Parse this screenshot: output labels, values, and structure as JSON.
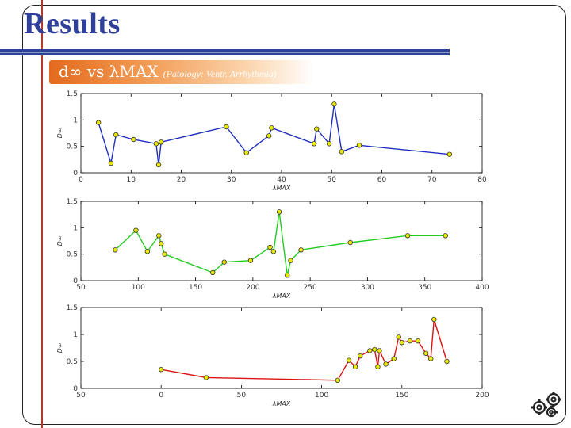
{
  "slide": {
    "title": "Results",
    "subtitle_main": "d∞ vs λMAX",
    "subtitle_tag": "(Patology: Ventr. Arrhythmia)"
  },
  "colors": {
    "title": "#2e3f9c",
    "accent_bar": "#e46a1c",
    "rule_red": "#b33a2a",
    "marker_fill": "#e8e800"
  },
  "chart_data": [
    {
      "type": "line",
      "xlabel": "λMAX",
      "ylabel": "D∞",
      "xlim": [
        0,
        80
      ],
      "ylim": [
        0,
        1.5
      ],
      "xticks": [
        "0",
        "10",
        "20",
        "30",
        "40",
        "50",
        "60",
        "70",
        "80"
      ],
      "yticks": [
        "0",
        "0.5",
        "1",
        "1.5"
      ],
      "color": "#1f2fbf",
      "x": [
        3.5,
        6,
        7,
        10.5,
        15,
        15.5,
        16,
        29,
        33,
        37.5,
        38,
        46.5,
        47,
        49.5,
        50.5,
        52,
        55.5,
        73.5
      ],
      "y": [
        0.95,
        0.18,
        0.72,
        0.63,
        0.55,
        0.15,
        0.58,
        0.87,
        0.38,
        0.7,
        0.85,
        0.55,
        0.83,
        0.55,
        1.3,
        0.4,
        0.52,
        0.35
      ]
    },
    {
      "type": "line",
      "xlabel": "λMAX",
      "ylabel": "D∞",
      "xlim": [
        50,
        400
      ],
      "ylim": [
        0,
        1.5
      ],
      "xticks": [
        "50",
        "100",
        "150",
        "200",
        "250",
        "300",
        "350",
        "400"
      ],
      "yticks": [
        "0",
        "0.5",
        "1",
        "1.5"
      ],
      "color": "#22cc22",
      "x": [
        80,
        98,
        108,
        118,
        120,
        123,
        165,
        175,
        198,
        215,
        218,
        223,
        230,
        233,
        242,
        285,
        335,
        368
      ],
      "y": [
        0.58,
        0.95,
        0.55,
        0.85,
        0.7,
        0.5,
        0.15,
        0.35,
        0.38,
        0.63,
        0.55,
        1.3,
        0.1,
        0.38,
        0.58,
        0.72,
        0.85,
        0.85
      ]
    },
    {
      "type": "line",
      "xlabel": "λMAX",
      "ylabel": "D∞",
      "xlim": [
        -50,
        200
      ],
      "ylim": [
        0,
        1.5
      ],
      "xticks": [
        "50",
        "0",
        "50",
        "100",
        "150",
        "200"
      ],
      "yticks": [
        "0",
        "0.5",
        "1",
        "1.5"
      ],
      "color": "#dd1111",
      "x": [
        0,
        28,
        110,
        117,
        121,
        124,
        130,
        133,
        135,
        136,
        140,
        145,
        148,
        150,
        155,
        160,
        165,
        168,
        170,
        178
      ],
      "y": [
        0.35,
        0.2,
        0.15,
        0.52,
        0.4,
        0.6,
        0.7,
        0.72,
        0.4,
        0.7,
        0.45,
        0.55,
        0.95,
        0.85,
        0.88,
        0.88,
        0.65,
        0.55,
        1.28,
        0.5
      ]
    }
  ]
}
